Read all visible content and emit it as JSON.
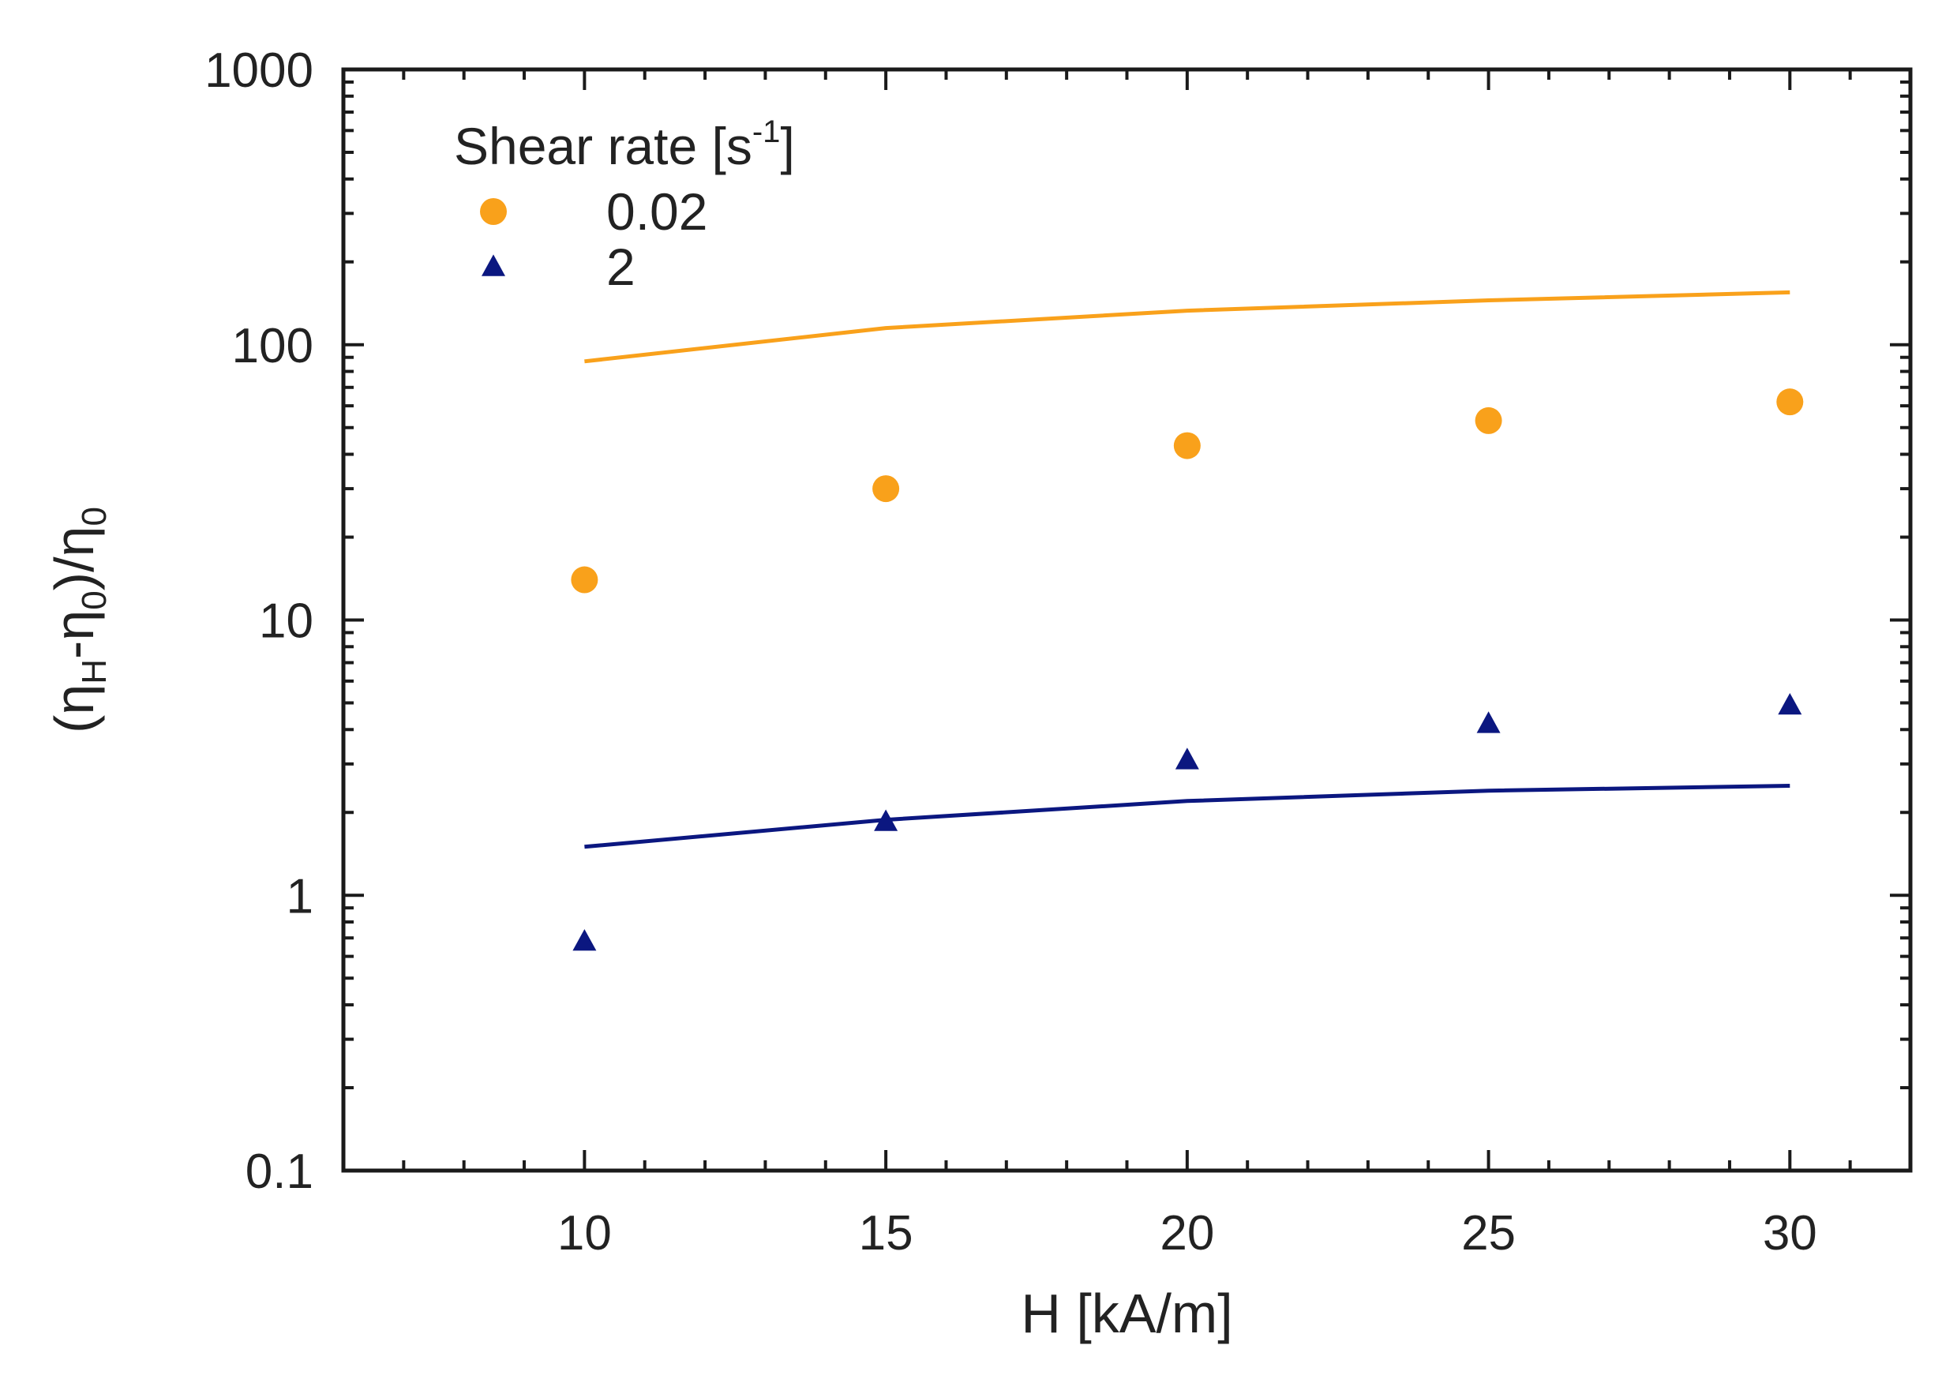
{
  "chart_data": {
    "type": "scatter",
    "title": "",
    "xlabel": "H [kA/m]",
    "ylabel": {
      "open": "(η",
      "sub1": "H",
      "mid": "-η",
      "sub2": "0",
      "close": ")/η",
      "sub3": "0"
    },
    "xlim": [
      6,
      32
    ],
    "ylim": [
      0.1,
      1000
    ],
    "yscale": "log",
    "x_ticks": [
      10,
      15,
      20,
      25,
      30
    ],
    "x_tick_labels": [
      "10",
      "15",
      "20",
      "25",
      "30"
    ],
    "y_ticks": [
      0.1,
      1,
      10,
      100,
      1000
    ],
    "y_tick_labels": [
      "0.1",
      "1",
      "10",
      "100",
      "1000"
    ],
    "legend": {
      "title_text": "Shear rate [s",
      "title_sup": "-1",
      "title_close": "]",
      "position": "top-left"
    },
    "series": [
      {
        "name": "0.02",
        "marker": "circle",
        "color": "#F9A11B",
        "points": [
          {
            "x": 10,
            "y": 14
          },
          {
            "x": 15,
            "y": 30
          },
          {
            "x": 20,
            "y": 43
          },
          {
            "x": 25,
            "y": 53
          },
          {
            "x": 30,
            "y": 62
          }
        ],
        "model_line": [
          {
            "x": 10,
            "y": 87
          },
          {
            "x": 15,
            "y": 115
          },
          {
            "x": 20,
            "y": 133
          },
          {
            "x": 25,
            "y": 145
          },
          {
            "x": 30,
            "y": 155
          }
        ]
      },
      {
        "name": "2",
        "marker": "triangle",
        "color": "#0B1780",
        "points": [
          {
            "x": 10,
            "y": 0.68
          },
          {
            "x": 15,
            "y": 1.85
          },
          {
            "x": 20,
            "y": 3.1
          },
          {
            "x": 25,
            "y": 4.2
          },
          {
            "x": 30,
            "y": 4.9
          }
        ],
        "model_line": [
          {
            "x": 10,
            "y": 1.5
          },
          {
            "x": 15,
            "y": 1.88
          },
          {
            "x": 20,
            "y": 2.2
          },
          {
            "x": 25,
            "y": 2.4
          },
          {
            "x": 30,
            "y": 2.5
          }
        ]
      }
    ]
  }
}
